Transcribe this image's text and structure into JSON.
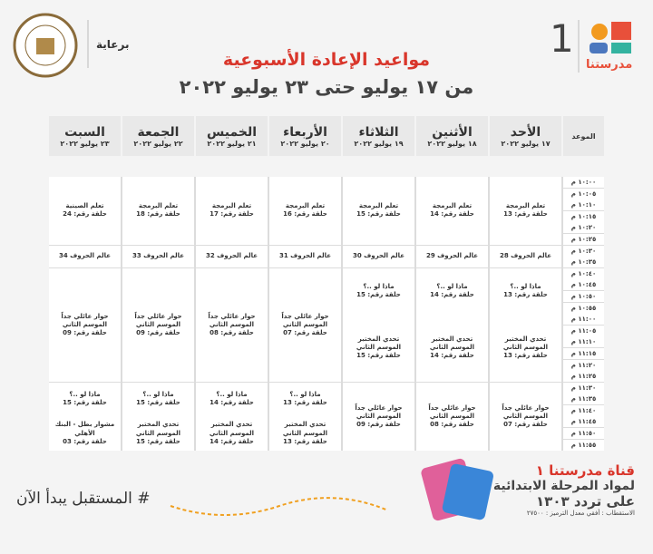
{
  "header": {
    "logo_text": "مدرستنا",
    "channel_number": "1",
    "title": "مواعيد الإعادة الأسبوعية",
    "subtitle": "من ١٧ يوليو حتى ٢٣ يوليو ٢٠٢٢",
    "sponsor": "برعاية"
  },
  "table": {
    "time_header": "الموعد",
    "times": [
      "١٠:٠٠ م",
      "١٠:٠٥ م",
      "١٠:١٠ م",
      "١٠:١٥ م",
      "١٠:٢٠ م",
      "١٠:٢٥ م",
      "١٠:٣٠ م",
      "١٠:٣٥ م",
      "١٠:٤٠ م",
      "١٠:٤٥ م",
      "١٠:٥٠ م",
      "١٠:٥٥ م",
      "١١:٠٠ م",
      "١١:٠٥ م",
      "١١:١٠ م",
      "١١:١٥ م",
      "١١:٢٠ م",
      "١١:٢٥ م",
      "١١:٣٠ م",
      "١١:٣٥ م",
      "١١:٤٠ م",
      "١١:٤٥ م",
      "١١:٥٠ م",
      "١١:٥٥ م"
    ],
    "columns": [
      {
        "day": "الأحد",
        "date": "١٧ يوليو ٢٠٢٢",
        "cells": [
          {
            "title": "تعلم البرمجة",
            "episode": "حلقة رقم: 13"
          },
          {
            "title": "عالم الحروف 28"
          },
          {
            "title": "ماذا لو ..؟",
            "episode": "حلقة رقم: 13"
          },
          {
            "title": "تحدي المختبر الموسم الثاني",
            "episode": "حلقة رقم: 13"
          },
          {
            "title": "حوار عائلي جداً الموسم الثاني",
            "episode": "حلقة رقم: 07"
          }
        ]
      },
      {
        "day": "الأثنين",
        "date": "١٨ يوليو ٢٠٢٢",
        "cells": [
          {
            "title": "تعلم البرمجة",
            "episode": "حلقة رقم: 14"
          },
          {
            "title": "عالم الحروف 29"
          },
          {
            "title": "ماذا لو ..؟",
            "episode": "حلقة رقم: 14"
          },
          {
            "title": "تحدي المختبر الموسم الثاني",
            "episode": "حلقة رقم: 14"
          },
          {
            "title": "حوار عائلي جداً الموسم الثاني",
            "episode": "حلقة رقم: 08"
          }
        ]
      },
      {
        "day": "الثلاثاء",
        "date": "١٩ يوليو ٢٠٢٢",
        "cells": [
          {
            "title": "تعلم البرمجة",
            "episode": "حلقة رقم: 15"
          },
          {
            "title": "عالم الحروف 30"
          },
          {
            "title": "ماذا لو ..؟",
            "episode": "حلقة رقم: 15"
          },
          {
            "title": "تحدي المختبر الموسم الثاني",
            "episode": "حلقة رقم: 15"
          },
          {
            "title": "حوار عائلي جداً الموسم الثاني",
            "episode": "حلقة رقم: 09"
          }
        ]
      },
      {
        "day": "الأربعاء",
        "date": "٢٠ يوليو ٢٠٢٢",
        "cells": [
          {
            "title": "تعلم البرمجة",
            "episode": "حلقة رقم: 16"
          },
          {
            "title": "عالم الحروف 31"
          },
          {
            "title": "حوار عائلي جداً الموسم الثاني",
            "episode": "حلقة رقم: 07"
          },
          {
            "title": "ماذا لو ..؟",
            "episode": "حلقة رقم: 13"
          },
          {
            "title": "تحدي المختبر الموسم الثاني",
            "episode": "حلقة رقم: 13"
          }
        ]
      },
      {
        "day": "الخميس",
        "date": "٢١ يوليو ٢٠٢٢",
        "cells": [
          {
            "title": "تعلم البرمجة",
            "episode": "حلقة رقم: 17"
          },
          {
            "title": "عالم الحروف 32"
          },
          {
            "title": "حوار عائلي جداً الموسم الثاني",
            "episode": "حلقة رقم: 08"
          },
          {
            "title": "ماذا لو ..؟",
            "episode": "حلقة رقم: 14"
          },
          {
            "title": "تحدي المختبر الموسم الثاني",
            "episode": "حلقة رقم: 14"
          }
        ]
      },
      {
        "day": "الجمعة",
        "date": "٢٢ يوليو ٢٠٢٢",
        "cells": [
          {
            "title": "تعلم البرمجة",
            "episode": "حلقة رقم: 18"
          },
          {
            "title": "عالم الحروف 33"
          },
          {
            "title": "حوار عائلي جداً الموسم الثاني",
            "episode": "حلقة رقم: 09"
          },
          {
            "title": "ماذا لو ..؟",
            "episode": "حلقة رقم: 15"
          },
          {
            "title": "تحدي المختبر الموسم الثاني",
            "episode": "حلقة رقم: 15"
          }
        ]
      },
      {
        "day": "السبت",
        "date": "٢٣ يوليو ٢٠٢٢",
        "cells": [
          {
            "title": "تعلم الصينية",
            "episode": "حلقة رقم: 24"
          },
          {
            "title": "عالم الحروف 34"
          },
          {
            "title": "حوار عائلي جداً الموسم الثاني",
            "episode": "حلقة رقم: 09"
          },
          {
            "title": "ماذا لو ..؟",
            "episode": "حلقة رقم: 15"
          },
          {
            "title": "مشوار بطل - البنك الأهلي",
            "episode": "حلقة رقم: 03"
          }
        ]
      }
    ]
  },
  "footer": {
    "hashtag": "# المستقبل يبدأ الآن",
    "channel_label": "قناة مدرستنا ١",
    "stage": "لمواد المرحلة الابتدائية",
    "frequency": "على تردد ١٣٠٣",
    "details": "الاستقطاب : أفقي معدل الترميز : ٢٧٥٠٠"
  }
}
